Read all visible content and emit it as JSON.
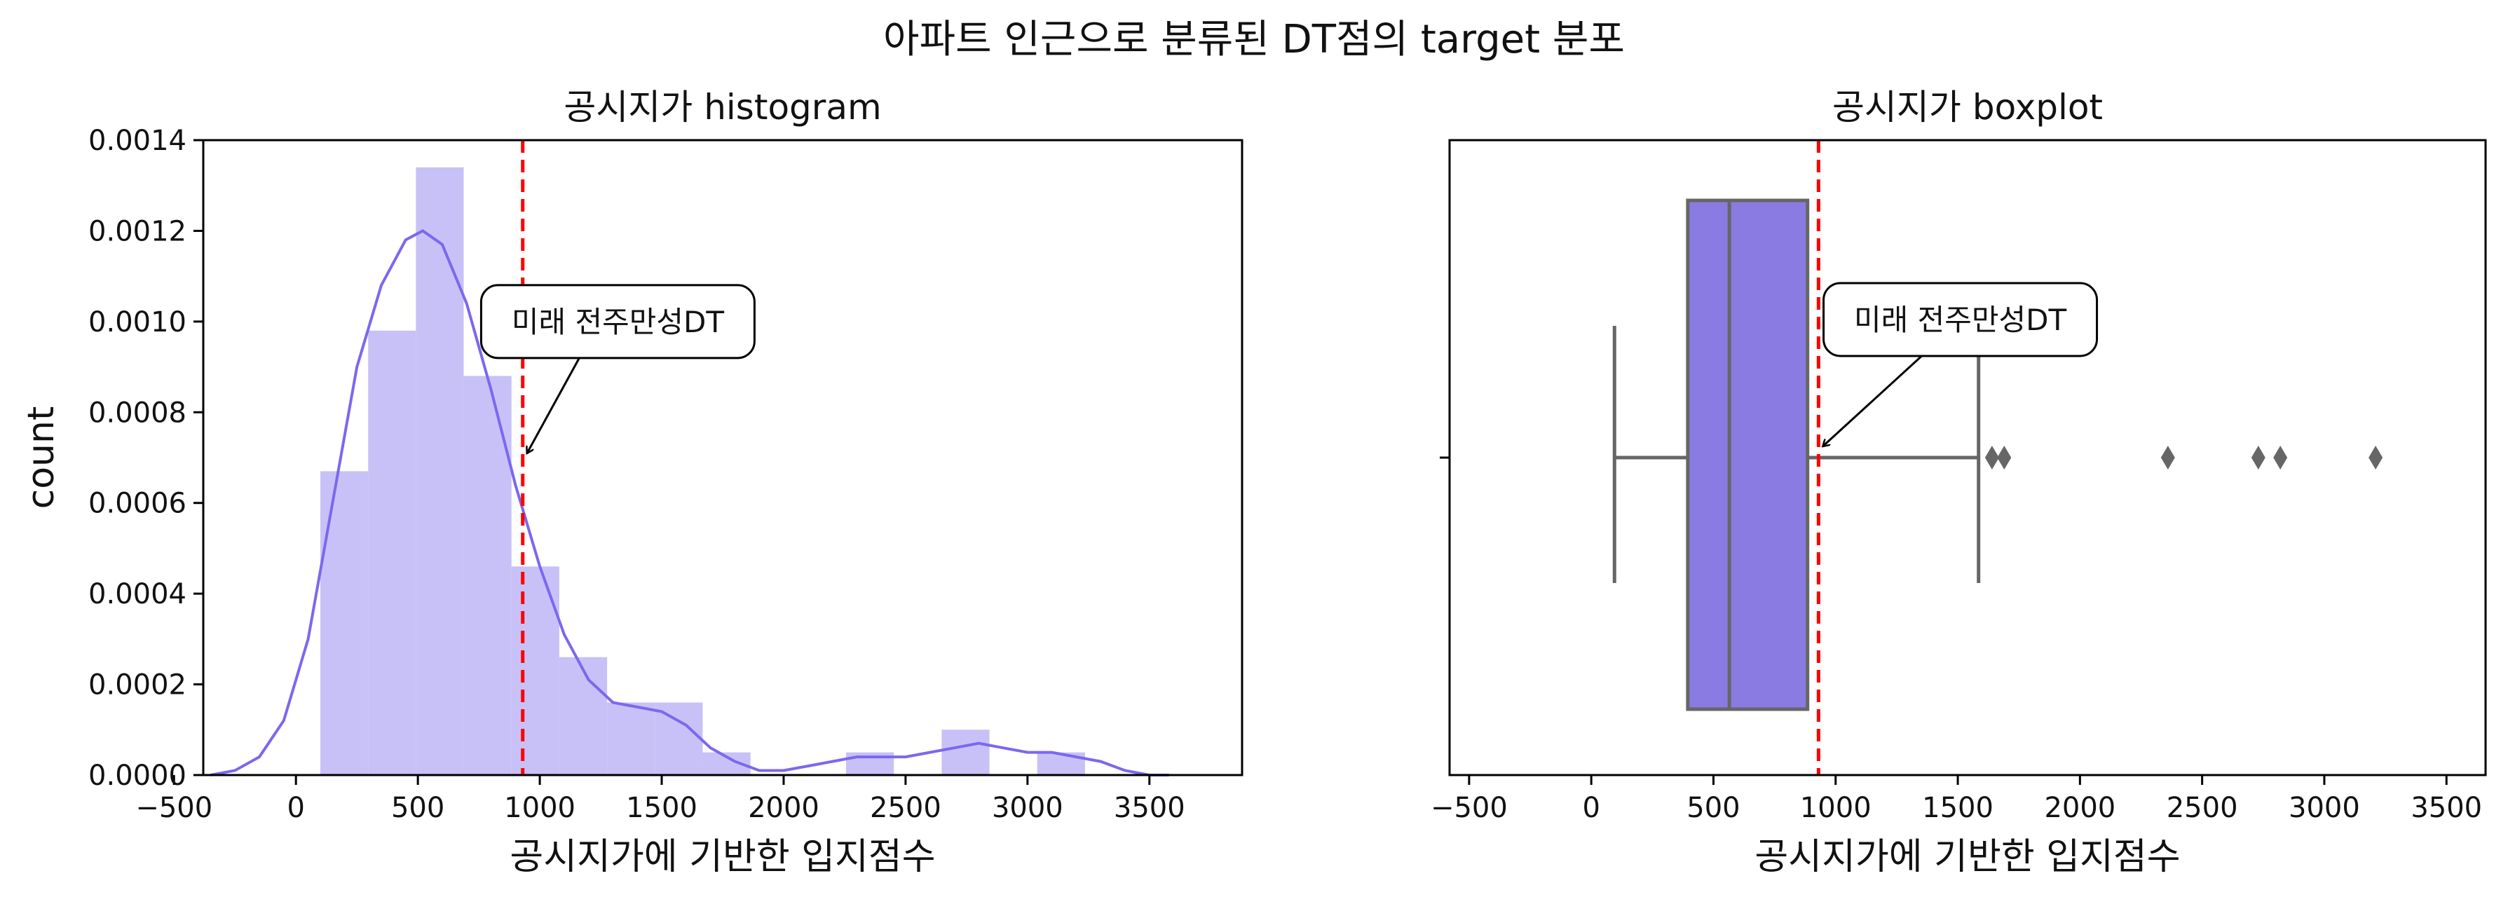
{
  "figure": {
    "suptitle": "아파트 인근으로 분류된 DT점의 target 분포"
  },
  "colors": {
    "hist_fill": "#c8c1f7",
    "kde_line": "#7b68ee",
    "box_fill": "#8a7be2",
    "box_line": "#666666",
    "ref_line": "#ff0000"
  },
  "chart_data": [
    {
      "type": "bar",
      "subtype": "histogram_with_kde",
      "title": "공시지가 histogram",
      "xlabel": "공시지가에 기반한 입지점수",
      "ylabel": "count",
      "xlim": [
        -380,
        3880
      ],
      "ylim": [
        0,
        0.0014
      ],
      "xticks": [
        -500,
        0,
        500,
        1000,
        1500,
        2000,
        2500,
        3000,
        3500
      ],
      "xtick_labels": [
        "−500",
        "0",
        "500",
        "1000",
        "1500",
        "2000",
        "2500",
        "3000",
        "3500"
      ],
      "yticks": [
        0,
        0.0002,
        0.0004,
        0.0006,
        0.0008,
        0.001,
        0.0012,
        0.0014
      ],
      "ytick_labels": [
        "0.0000",
        "0.0002",
        "0.0004",
        "0.0006",
        "0.0008",
        "0.0010",
        "0.0012",
        "0.0014"
      ],
      "bins": [
        {
          "x0": 100,
          "x1": 296,
          "value": 0.00067
        },
        {
          "x0": 296,
          "x1": 492,
          "value": 0.00098
        },
        {
          "x0": 492,
          "x1": 688,
          "value": 0.00134
        },
        {
          "x0": 688,
          "x1": 884,
          "value": 0.00088
        },
        {
          "x0": 884,
          "x1": 1080,
          "value": 0.00046
        },
        {
          "x0": 1080,
          "x1": 1276,
          "value": 0.00026
        },
        {
          "x0": 1276,
          "x1": 1472,
          "value": 0.00016
        },
        {
          "x0": 1472,
          "x1": 1668,
          "value": 0.00016
        },
        {
          "x0": 1668,
          "x1": 1864,
          "value": 5e-05
        },
        {
          "x0": 1864,
          "x1": 2060,
          "value": 0
        },
        {
          "x0": 2060,
          "x1": 2256,
          "value": 0
        },
        {
          "x0": 2256,
          "x1": 2452,
          "value": 5e-05
        },
        {
          "x0": 2452,
          "x1": 2648,
          "value": 0
        },
        {
          "x0": 2648,
          "x1": 2844,
          "value": 0.0001
        },
        {
          "x0": 2844,
          "x1": 3040,
          "value": 0
        },
        {
          "x0": 3040,
          "x1": 3236,
          "value": 5e-05
        }
      ],
      "kde": {
        "x": [
          -350,
          -250,
          -150,
          -50,
          50,
          150,
          250,
          350,
          450,
          520,
          600,
          700,
          800,
          900,
          1000,
          1100,
          1200,
          1300,
          1400,
          1500,
          1600,
          1700,
          1800,
          1900,
          2000,
          2100,
          2200,
          2300,
          2400,
          2500,
          2600,
          2700,
          2800,
          2900,
          3000,
          3100,
          3200,
          3300,
          3400,
          3500,
          3580
        ],
        "y": [
          0.0,
          1e-05,
          4e-05,
          0.00012,
          0.0003,
          0.0006,
          0.0009,
          0.00108,
          0.00118,
          0.0012,
          0.00117,
          0.00104,
          0.00085,
          0.00064,
          0.00046,
          0.00031,
          0.00021,
          0.00016,
          0.00015,
          0.00014,
          0.00011,
          6e-05,
          3e-05,
          1e-05,
          1e-05,
          2e-05,
          3e-05,
          4e-05,
          4e-05,
          4e-05,
          5e-05,
          6e-05,
          7e-05,
          6e-05,
          5e-05,
          5e-05,
          4e-05,
          3e-05,
          1e-05,
          0.0,
          0.0
        ]
      },
      "reference_line": {
        "x": 930,
        "style": "dashed"
      },
      "annotation": {
        "text": "미래 전주만성DT",
        "x": 930,
        "y": 0.0007,
        "text_x": 1320,
        "text_y": 0.001
      }
    },
    {
      "type": "boxplot",
      "title": "공시지가 boxplot",
      "xlabel": "공시지가에 기반한 입지점수",
      "ylabel": "",
      "xlim": [
        -580,
        3660
      ],
      "xticks": [
        -500,
        0,
        500,
        1000,
        1500,
        2000,
        2500,
        3000,
        3500
      ],
      "xtick_labels": [
        "−500",
        "0",
        "500",
        "1000",
        "1500",
        "2000",
        "2500",
        "3000",
        "3500"
      ],
      "box": {
        "whisker_low": 95,
        "q1": 395,
        "median": 565,
        "q3": 885,
        "whisker_high": 1585
      },
      "outliers": [
        1640,
        1690,
        2360,
        2730,
        2820,
        3210
      ],
      "reference_line": {
        "x": 930,
        "style": "dashed"
      },
      "annotation": {
        "text": "미래 전주만성DT",
        "x": 930,
        "text_x": 1510
      }
    }
  ]
}
